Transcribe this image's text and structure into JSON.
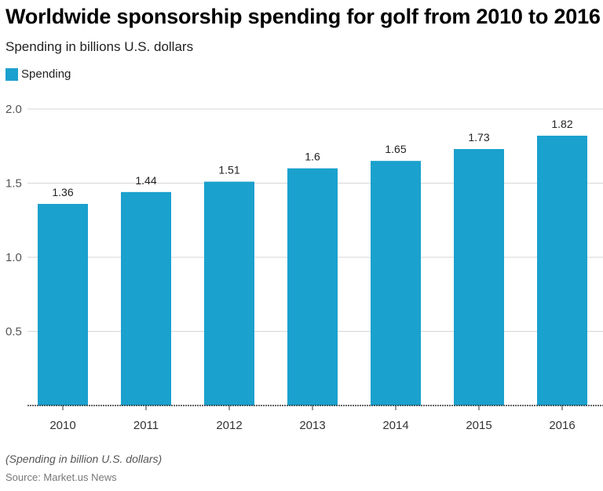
{
  "chart_data": {
    "type": "bar",
    "title": "Worldwide sponsorship spending for golf from 2010 to 2016",
    "subtitle": "Spending in billions U.S. dollars",
    "categories": [
      "2010",
      "2011",
      "2012",
      "2013",
      "2014",
      "2015",
      "2016"
    ],
    "series": [
      {
        "name": "Spending",
        "values": [
          1.36,
          1.44,
          1.51,
          1.6,
          1.65,
          1.73,
          1.82
        ],
        "color": "#1aa1cd"
      }
    ],
    "data_labels": [
      "1.36",
      "1.44",
      "1.51",
      "1.6",
      "1.65",
      "1.73",
      "1.82"
    ],
    "yticks": [
      "0.5",
      "1.0",
      "1.5",
      "2.0"
    ],
    "ylim": [
      0,
      2.0
    ],
    "xlabel": "",
    "ylabel": "",
    "grid": true,
    "legend": "top-left",
    "note": "(Spending in billion U.S. dollars)",
    "source": "Source: Market.us News"
  }
}
